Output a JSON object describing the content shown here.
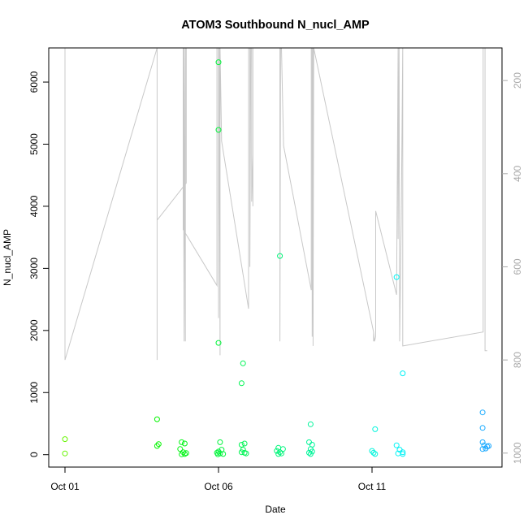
{
  "chart_data": {
    "type": "scatter",
    "title": "ATOM3 Southbound N_nucl_AMP",
    "xlabel": "Date",
    "ylabel": "N_nucl_AMP",
    "x_range_days": [
      0,
      14
    ],
    "x_ticks": [
      {
        "day": 0,
        "label": "Oct 01"
      },
      {
        "day": 5,
        "label": "Oct 06"
      },
      {
        "day": 10,
        "label": "Oct 11"
      }
    ],
    "ylim": [
      -200,
      6550
    ],
    "y_ticks": [
      0,
      1000,
      2000,
      3000,
      4000,
      5000,
      6000
    ],
    "y_tick_labels": [
      "0",
      "1000",
      "2000",
      "3000",
      "4000",
      "5000",
      "6000"
    ],
    "y2_label": "",
    "y2_range": [
      130,
      1030
    ],
    "y2_ticks": [
      200,
      400,
      600,
      800,
      1000
    ],
    "y2_tick_labels": [
      "200",
      "400",
      "600",
      "800",
      "1000"
    ],
    "y2_reversed": true,
    "grid": false,
    "legend": "none",
    "colors": {
      "line": "#c8c8c8",
      "axis": "#000000",
      "right_axis": "#a9a9a9"
    },
    "series": [
      {
        "kind": "points",
        "points": [
          {
            "x": 0.0,
            "y": 250
          },
          {
            "x": 0.0,
            "y": 20
          },
          {
            "x": 3.0,
            "y": 570
          },
          {
            "x": 3.0,
            "y": 140
          },
          {
            "x": 3.05,
            "y": 170
          },
          {
            "x": 3.8,
            "y": 200
          },
          {
            "x": 3.9,
            "y": 180
          },
          {
            "x": 3.75,
            "y": 90
          },
          {
            "x": 3.85,
            "y": 40
          },
          {
            "x": 3.9,
            "y": 10
          },
          {
            "x": 3.95,
            "y": 25
          },
          {
            "x": 3.8,
            "y": 5
          },
          {
            "x": 5.0,
            "y": 6320
          },
          {
            "x": 5.0,
            "y": 5230
          },
          {
            "x": 5.0,
            "y": 1800
          },
          {
            "x": 5.05,
            "y": 200
          },
          {
            "x": 5.1,
            "y": 80
          },
          {
            "x": 5.0,
            "y": 50
          },
          {
            "x": 4.95,
            "y": 30
          },
          {
            "x": 5.05,
            "y": 20
          },
          {
            "x": 5.15,
            "y": 10
          },
          {
            "x": 4.98,
            "y": 5
          },
          {
            "x": 5.8,
            "y": 1470
          },
          {
            "x": 5.75,
            "y": 1150
          },
          {
            "x": 5.75,
            "y": 160
          },
          {
            "x": 5.85,
            "y": 180
          },
          {
            "x": 5.8,
            "y": 80
          },
          {
            "x": 5.75,
            "y": 40
          },
          {
            "x": 5.85,
            "y": 30
          },
          {
            "x": 5.9,
            "y": 20
          },
          {
            "x": 7.0,
            "y": 3200
          },
          {
            "x": 6.95,
            "y": 110
          },
          {
            "x": 7.1,
            "y": 90
          },
          {
            "x": 6.9,
            "y": 60
          },
          {
            "x": 7.0,
            "y": 40
          },
          {
            "x": 7.05,
            "y": 20
          },
          {
            "x": 6.95,
            "y": 10
          },
          {
            "x": 8.0,
            "y": 490
          },
          {
            "x": 7.95,
            "y": 200
          },
          {
            "x": 8.05,
            "y": 160
          },
          {
            "x": 8.0,
            "y": 90
          },
          {
            "x": 8.05,
            "y": 50
          },
          {
            "x": 7.95,
            "y": 30
          },
          {
            "x": 8.0,
            "y": 10
          },
          {
            "x": 10.1,
            "y": 410
          },
          {
            "x": 10.0,
            "y": 60
          },
          {
            "x": 10.05,
            "y": 30
          },
          {
            "x": 10.1,
            "y": 10
          },
          {
            "x": 10.8,
            "y": 2860
          },
          {
            "x": 11.0,
            "y": 1310
          },
          {
            "x": 10.8,
            "y": 150
          },
          {
            "x": 10.9,
            "y": 80
          },
          {
            "x": 11.0,
            "y": 40
          },
          {
            "x": 10.85,
            "y": 20
          },
          {
            "x": 11.0,
            "y": 10
          },
          {
            "x": 13.6,
            "y": 680
          },
          {
            "x": 13.6,
            "y": 430
          },
          {
            "x": 13.6,
            "y": 200
          },
          {
            "x": 13.65,
            "y": 150
          },
          {
            "x": 13.75,
            "y": 130
          },
          {
            "x": 13.8,
            "y": 140
          },
          {
            "x": 13.7,
            "y": 100
          },
          {
            "x": 13.6,
            "y": 90
          }
        ]
      },
      {
        "kind": "line",
        "axis": "right",
        "points": [
          [
            0.0,
            130
          ],
          [
            0.0,
            130
          ],
          [
            0.0,
            800
          ],
          [
            3.0,
            130
          ],
          [
            3.0,
            130
          ],
          [
            3.0,
            800
          ],
          [
            3.0,
            500
          ],
          [
            3.95,
            420
          ],
          [
            3.95,
            130
          ],
          [
            3.92,
            130
          ],
          [
            3.92,
            760
          ],
          [
            3.88,
            130
          ],
          [
            3.88,
            760
          ],
          [
            3.85,
            130
          ],
          [
            3.85,
            520
          ],
          [
            4.95,
            640
          ],
          [
            4.95,
            130
          ],
          [
            5.0,
            130
          ],
          [
            5.0,
            710
          ],
          [
            5.02,
            130
          ],
          [
            5.02,
            130
          ],
          [
            5.05,
            790
          ],
          [
            5.05,
            130
          ],
          [
            5.1,
            330
          ],
          [
            5.98,
            690
          ],
          [
            5.98,
            130
          ],
          [
            6.02,
            130
          ],
          [
            6.02,
            600
          ],
          [
            6.05,
            130
          ],
          [
            6.05,
            130
          ],
          [
            6.08,
            130
          ],
          [
            6.08,
            460
          ],
          [
            6.12,
            360
          ],
          [
            6.12,
            470
          ],
          [
            6.12,
            130
          ],
          [
            7.0,
            130
          ],
          [
            7.0,
            760
          ],
          [
            7.02,
            130
          ],
          [
            7.02,
            130
          ],
          [
            7.05,
            130
          ],
          [
            7.12,
            340
          ],
          [
            8.02,
            650
          ],
          [
            8.02,
            130
          ],
          [
            8.05,
            130
          ],
          [
            8.05,
            750
          ],
          [
            8.08,
            130
          ],
          [
            8.08,
            770
          ],
          [
            8.1,
            130
          ],
          [
            10.05,
            740
          ],
          [
            10.05,
            760
          ],
          [
            10.05,
            740
          ],
          [
            10.08,
            760
          ],
          [
            10.12,
            750
          ],
          [
            10.12,
            480
          ],
          [
            10.8,
            660
          ],
          [
            10.85,
            130
          ],
          [
            10.85,
            540
          ],
          [
            10.88,
            130
          ],
          [
            10.9,
            760
          ],
          [
            10.95,
            510
          ],
          [
            11.0,
            130
          ],
          [
            11.0,
            770
          ],
          [
            13.62,
            740
          ],
          [
            13.62,
            130
          ],
          [
            13.68,
            130
          ],
          [
            13.68,
            780
          ],
          [
            13.75,
            780
          ]
        ]
      }
    ]
  }
}
